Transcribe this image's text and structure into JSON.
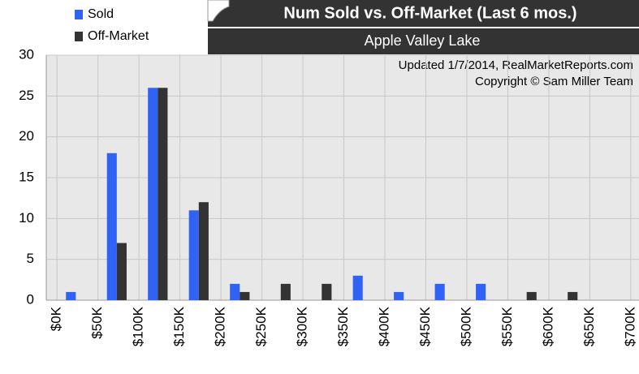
{
  "chart_data": {
    "type": "histogram",
    "title": "Num Sold vs. Off-Market (Last 6 mos.)",
    "subtitle": "Apple Valley Lake",
    "annotations": [
      "Updated 1/7/2014, RealMarketReports.com",
      "Copyright © Sam Miller Team"
    ],
    "bins": [
      {
        "value": 0,
        "label": "$0K"
      },
      {
        "value": 50000,
        "label": "$50K"
      },
      {
        "value": 100000,
        "label": "$100K"
      },
      {
        "value": 150000,
        "label": "$150K"
      },
      {
        "value": 200000,
        "label": "$200K"
      },
      {
        "value": 250000,
        "label": "$250K"
      },
      {
        "value": 300000,
        "label": "$300K"
      },
      {
        "value": 350000,
        "label": "$350K"
      },
      {
        "value": 400000,
        "label": "$400K"
      },
      {
        "value": 450000,
        "label": "$450K"
      },
      {
        "value": 500000,
        "label": "$500K"
      },
      {
        "value": 550000,
        "label": "$550K"
      },
      {
        "value": 600000,
        "label": "$600K"
      },
      {
        "value": 650000,
        "label": "$650K"
      },
      {
        "value": 700000,
        "label": "$700K"
      }
    ],
    "series": [
      {
        "name": "Sold",
        "color": "#2f62f5",
        "values": [
          1,
          18,
          26,
          11,
          2,
          0,
          0,
          3,
          1,
          2,
          2,
          0,
          0,
          0
        ]
      },
      {
        "name": "Off-Market",
        "color": "#333333",
        "values": [
          0,
          7,
          26,
          12,
          1,
          2,
          2,
          0,
          0,
          0,
          0,
          1,
          1,
          0
        ]
      }
    ],
    "xlim": [
      -13000,
      710000
    ],
    "ylim": [
      0,
      30
    ],
    "yticks": [
      0,
      5,
      10,
      15,
      20,
      25,
      30
    ],
    "grid": true,
    "legend": "top-left"
  }
}
